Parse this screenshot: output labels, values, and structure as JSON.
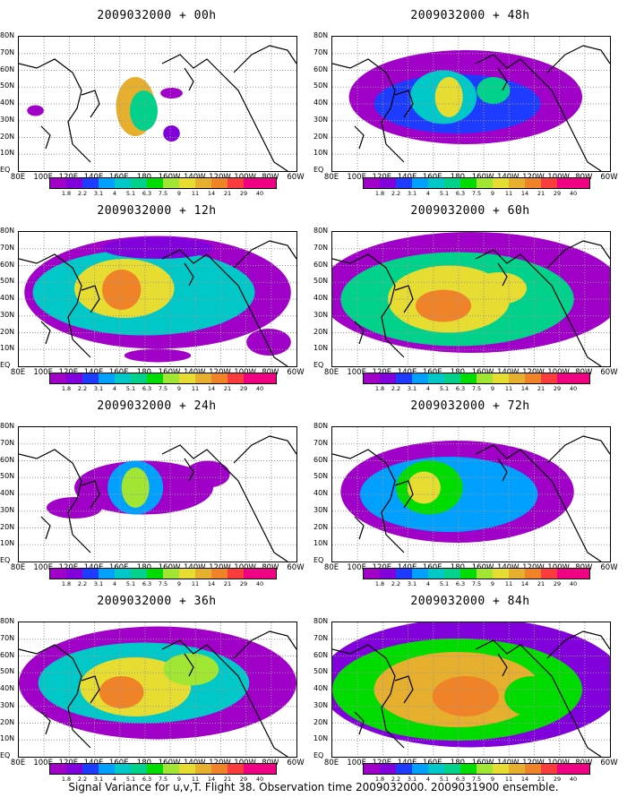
{
  "footer": "Signal Variance for u,v,T. Flight 38. Observation time 2009032000. 2009031900 ensemble.",
  "panels": [
    {
      "title": "2009032000 + 00h"
    },
    {
      "title": "2009032000 + 48h"
    },
    {
      "title": "2009032000 + 12h"
    },
    {
      "title": "2009032000 + 60h"
    },
    {
      "title": "2009032000 + 24h"
    },
    {
      "title": "2009032000 + 72h"
    },
    {
      "title": "2009032000 + 36h"
    },
    {
      "title": "2009032000 + 84h"
    }
  ],
  "chart_data": {
    "type": "heatmap",
    "panels": [
      "2009032000 + 00h",
      "2009032000 + 12h",
      "2009032000 + 24h",
      "2009032000 + 36h",
      "2009032000 + 48h",
      "2009032000 + 60h",
      "2009032000 + 72h",
      "2009032000 + 84h"
    ],
    "x_ticks": [
      "80E",
      "100E",
      "120E",
      "140E",
      "160E",
      "180",
      "160W",
      "140W",
      "120W",
      "100W",
      "80W",
      "60W"
    ],
    "y_ticks": [
      "EQ",
      "10N",
      "20N",
      "30N",
      "40N",
      "50N",
      "60N",
      "70N",
      "80N"
    ],
    "colorbar": {
      "labels": [
        "1.8",
        "2.2",
        "3.1",
        "4",
        "5.1",
        "6.3",
        "7.5",
        "9",
        "11",
        "14",
        "21",
        "29",
        "40"
      ],
      "colors": [
        "#a000c8",
        "#8200dc",
        "#1e3cff",
        "#00a0ff",
        "#00c8c8",
        "#00d28c",
        "#00dc00",
        "#a0e632",
        "#e6dc32",
        "#e6af2d",
        "#f08228",
        "#fa3c3c",
        "#f00082"
      ]
    }
  }
}
